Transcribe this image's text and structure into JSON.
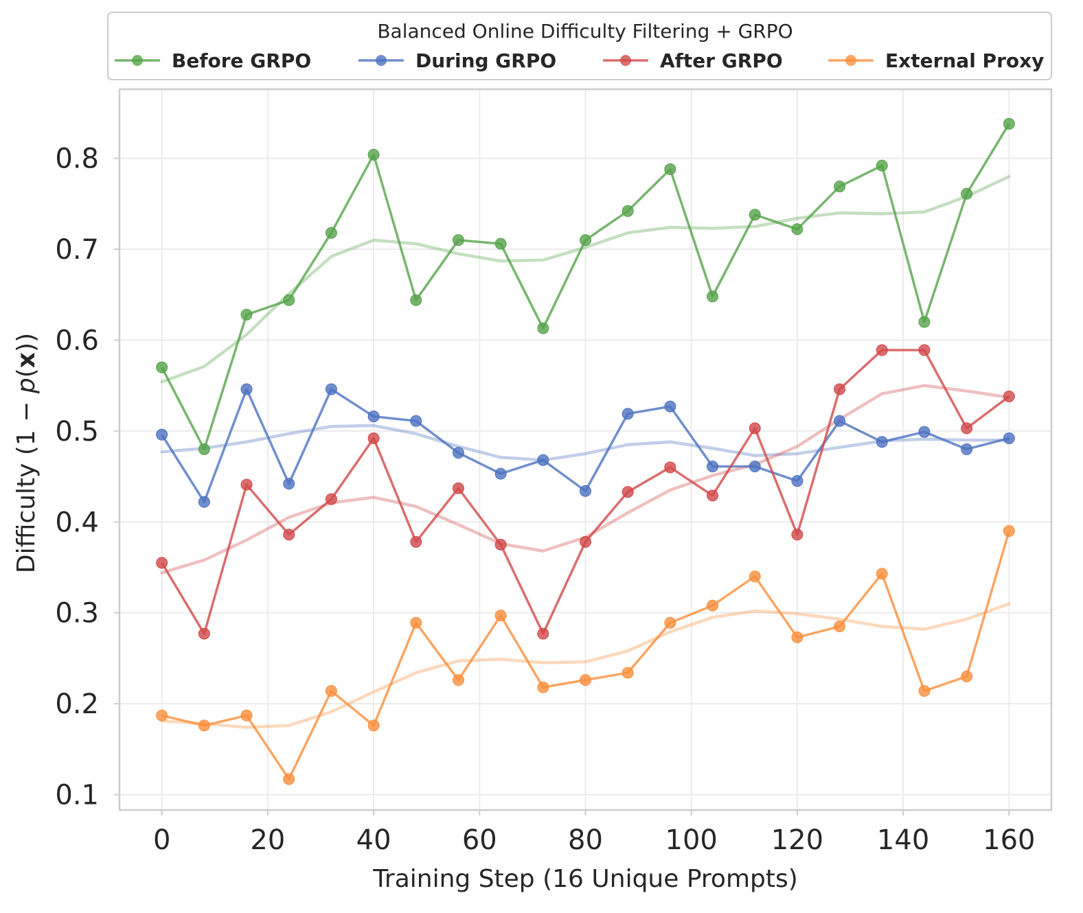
{
  "chart_data": {
    "type": "line",
    "title": "",
    "legend_title": "Balanced Online Difficulty Filtering + GRPO",
    "legend_position": "top",
    "xlabel": "Training Step (16 Unique Prompts)",
    "ylabel_parts": [
      "Difficulty (1 − ",
      "p",
      "(",
      "x",
      "))"
    ],
    "xlim": [
      -8,
      168
    ],
    "ylim": [
      0.083,
      0.876
    ],
    "xticks": [
      0,
      20,
      40,
      60,
      80,
      100,
      120,
      140,
      160
    ],
    "xtick_labels": [
      "0",
      "20",
      "40",
      "60",
      "80",
      "100",
      "120",
      "140",
      "160"
    ],
    "yticks": [
      0.1,
      0.2,
      0.3,
      0.4,
      0.5,
      0.6,
      0.7,
      0.8
    ],
    "ytick_labels": [
      "0.1",
      "0.2",
      "0.3",
      "0.4",
      "0.5",
      "0.6",
      "0.7",
      "0.8"
    ],
    "grid": true,
    "x": [
      0,
      8,
      16,
      24,
      32,
      40,
      48,
      56,
      64,
      72,
      80,
      88,
      96,
      104,
      112,
      120,
      128,
      136,
      144,
      152,
      160
    ],
    "series": [
      {
        "name": "Before GRPO",
        "color": "#55a24a",
        "values": [
          0.57,
          0.48,
          0.628,
          0.644,
          0.718,
          0.804,
          0.644,
          0.71,
          0.706,
          0.613,
          0.71,
          0.742,
          0.788,
          0.648,
          0.738,
          0.722,
          0.769,
          0.792,
          0.62,
          0.761,
          0.838
        ],
        "trend": [
          0.554,
          0.571,
          0.606,
          0.651,
          0.692,
          0.71,
          0.706,
          0.695,
          0.687,
          0.688,
          0.702,
          0.718,
          0.724,
          0.723,
          0.725,
          0.734,
          0.74,
          0.739,
          0.741,
          0.758,
          0.78
        ]
      },
      {
        "name": "During GRPO",
        "color": "#4c72c0",
        "values": [
          0.496,
          0.422,
          0.546,
          0.442,
          0.546,
          0.516,
          0.511,
          0.476,
          0.453,
          0.468,
          0.434,
          0.519,
          0.527,
          0.461,
          0.461,
          0.445,
          0.511,
          0.488,
          0.499,
          0.48,
          0.492
        ],
        "trend": [
          0.477,
          0.481,
          0.488,
          0.497,
          0.505,
          0.506,
          0.497,
          0.483,
          0.471,
          0.468,
          0.475,
          0.485,
          0.488,
          0.481,
          0.473,
          0.475,
          0.482,
          0.489,
          0.491,
          0.49,
          0.49
        ]
      },
      {
        "name": "After GRPO",
        "color": "#d1484a",
        "values": [
          0.355,
          0.277,
          0.441,
          0.386,
          0.425,
          0.492,
          0.378,
          0.437,
          0.375,
          0.277,
          0.378,
          0.433,
          0.46,
          0.429,
          0.503,
          0.386,
          0.546,
          0.589,
          0.589,
          0.503,
          0.538
        ],
        "trend": [
          0.344,
          0.358,
          0.38,
          0.405,
          0.421,
          0.427,
          0.417,
          0.397,
          0.376,
          0.368,
          0.383,
          0.41,
          0.435,
          0.451,
          0.463,
          0.483,
          0.513,
          0.541,
          0.55,
          0.544,
          0.537
        ]
      },
      {
        "name": "External Proxy",
        "color": "#fa8f3c",
        "values": [
          0.187,
          0.176,
          0.187,
          0.117,
          0.214,
          0.176,
          0.289,
          0.226,
          0.297,
          0.218,
          0.226,
          0.234,
          0.289,
          0.308,
          0.34,
          0.273,
          0.285,
          0.343,
          0.214,
          0.23,
          0.39
        ],
        "trend": [
          0.181,
          0.178,
          0.174,
          0.176,
          0.191,
          0.213,
          0.234,
          0.247,
          0.249,
          0.245,
          0.246,
          0.258,
          0.279,
          0.295,
          0.302,
          0.299,
          0.293,
          0.285,
          0.282,
          0.293,
          0.31
        ]
      }
    ]
  }
}
